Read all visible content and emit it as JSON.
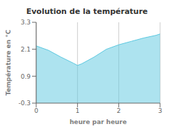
{
  "chart_data": {
    "type": "area",
    "title": "Evolution de la température",
    "x_label": "heure par heure",
    "y_label": "Température en °C",
    "x": [
      0,
      0.3,
      0.6,
      0.9,
      1.0,
      1.1,
      1.4,
      1.7,
      2.0,
      2.3,
      2.6,
      2.9,
      3.0
    ],
    "values": [
      2.25,
      2.05,
      1.75,
      1.48,
      1.38,
      1.45,
      1.75,
      2.1,
      2.3,
      2.45,
      2.6,
      2.72,
      2.78
    ],
    "color": "#5bc8e0",
    "xlim": [
      0,
      3
    ],
    "ylim": [
      -0.3,
      3.3
    ],
    "xticks": [
      0,
      1,
      2,
      3
    ],
    "yticks": [
      -0.3,
      0.9,
      2.1,
      3.3
    ],
    "grid": "x"
  }
}
